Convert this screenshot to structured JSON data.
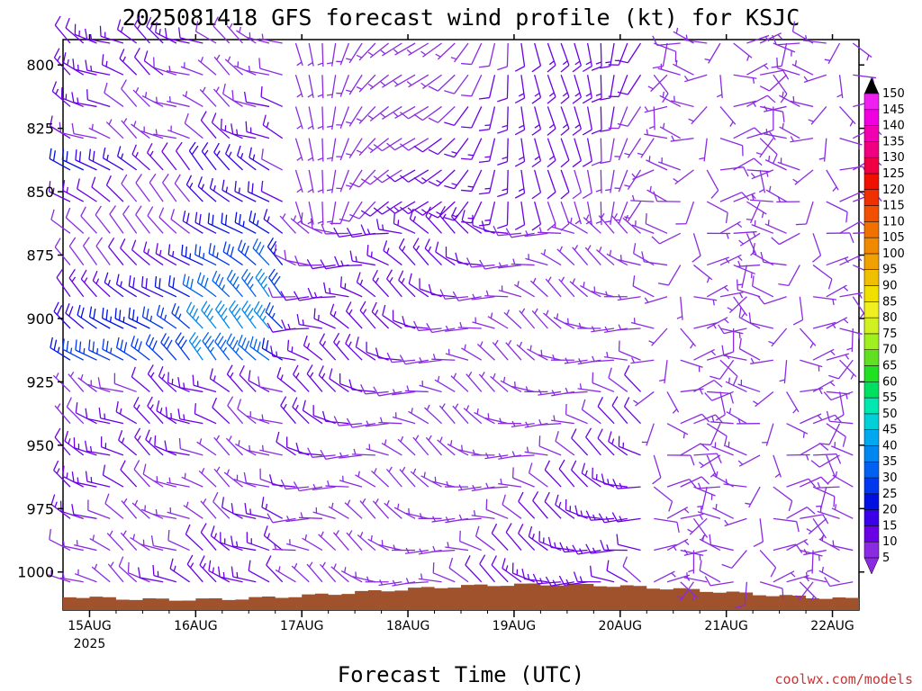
{
  "chart_data": {
    "type": "wind-barb-profile",
    "title": "2025081418 GFS forecast wind profile (kt) for KSJC",
    "xlabel": "Forecast Time (UTC)",
    "ylabel": "",
    "y_axis": {
      "ticks": [
        "800",
        "825",
        "850",
        "875",
        "900",
        "925",
        "950",
        "975",
        "1000"
      ],
      "range_hpa": [
        790,
        1015
      ],
      "inverted": true
    },
    "x_axis": {
      "ticks": [
        "15AUG",
        "16AUG",
        "17AUG",
        "18AUG",
        "19AUG",
        "20AUG",
        "21AUG",
        "22AUG"
      ],
      "year_label": "2025",
      "start": "2025-08-14T18Z",
      "end": "2025-08-22T06Z",
      "step_hours": 3
    },
    "colorbar": {
      "levels": [
        "5",
        "10",
        "15",
        "20",
        "25",
        "30",
        "35",
        "40",
        "45",
        "50",
        "55",
        "60",
        "65",
        "70",
        "75",
        "80",
        "85",
        "90",
        "95",
        "100",
        "105",
        "110",
        "115",
        "120",
        "125",
        "130",
        "135",
        "140",
        "145",
        "150"
      ],
      "colors": [
        "#8a2be2",
        "#6a00e6",
        "#3a00e8",
        "#0010e0",
        "#0038f0",
        "#0060f0",
        "#0088f0",
        "#00a8f0",
        "#00d0d8",
        "#00e8b0",
        "#00e060",
        "#20e020",
        "#60e020",
        "#a0f020",
        "#d0f020",
        "#f0f020",
        "#f0e000",
        "#f0c000",
        "#f0a000",
        "#f08800",
        "#f07000",
        "#f05000",
        "#f03000",
        "#f01000",
        "#f00040",
        "#f00080",
        "#f000b0",
        "#f000e0",
        "#f020f0",
        "#000000"
      ],
      "units": "kt"
    },
    "wind_barbs_note": "Barb direction and speed vary by time and level; mostly 5-15 kt (purple) with 20-35 kt (blue) in the 850-925 hPa layer on 15-16 AUG. Wind barbs point in the direction the wind comes from.",
    "terrain_color": "#a0522d",
    "grid": false,
    "legend": "right"
  },
  "credit": "coolwx.com/models"
}
